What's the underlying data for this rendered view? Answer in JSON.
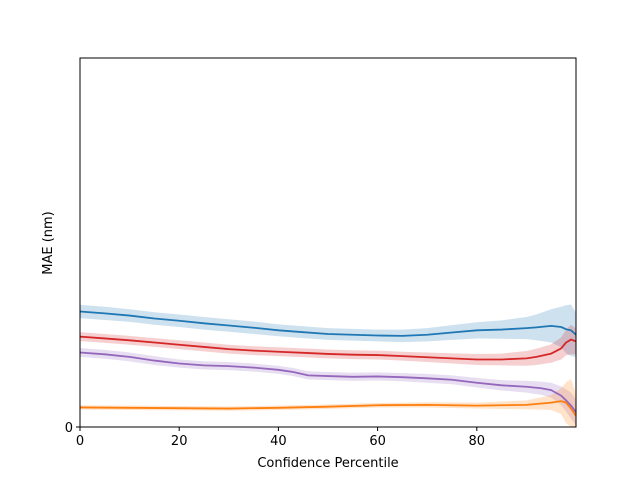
{
  "chart_data": {
    "type": "line",
    "title": "",
    "xlabel": "Confidence Percentile",
    "ylabel": "MAE (nm)",
    "xlim": [
      0,
      100
    ],
    "ylim": [
      0,
      1.0
    ],
    "xticks": [
      0,
      20,
      40,
      60,
      80
    ],
    "yticks": [
      0
    ],
    "grid": false,
    "legend": "none",
    "series": [
      {
        "color": "#1f77b4",
        "x": [
          0,
          5,
          10,
          15,
          20,
          25,
          30,
          35,
          40,
          45,
          50,
          55,
          60,
          65,
          70,
          75,
          80,
          85,
          90,
          92,
          95,
          97,
          98,
          99,
          100
        ],
        "y": [
          0.313,
          0.308,
          0.302,
          0.294,
          0.288,
          0.281,
          0.275,
          0.269,
          0.262,
          0.257,
          0.252,
          0.25,
          0.248,
          0.247,
          0.25,
          0.256,
          0.262,
          0.264,
          0.268,
          0.27,
          0.274,
          0.271,
          0.265,
          0.262,
          0.25
        ],
        "band": [
          0.018,
          0.018,
          0.017,
          0.017,
          0.017,
          0.017,
          0.017,
          0.017,
          0.016,
          0.016,
          0.016,
          0.016,
          0.016,
          0.017,
          0.018,
          0.02,
          0.022,
          0.025,
          0.03,
          0.035,
          0.045,
          0.055,
          0.065,
          0.07,
          0.06
        ]
      },
      {
        "color": "#d62728",
        "x": [
          0,
          5,
          10,
          15,
          20,
          25,
          30,
          35,
          40,
          45,
          50,
          55,
          60,
          65,
          70,
          75,
          80,
          85,
          90,
          92,
          95,
          97,
          98,
          99,
          100
        ],
        "y": [
          0.245,
          0.24,
          0.235,
          0.229,
          0.223,
          0.217,
          0.211,
          0.207,
          0.204,
          0.201,
          0.198,
          0.196,
          0.195,
          0.192,
          0.189,
          0.186,
          0.183,
          0.183,
          0.186,
          0.19,
          0.199,
          0.213,
          0.229,
          0.237,
          0.232
        ],
        "band": [
          0.012,
          0.012,
          0.012,
          0.012,
          0.012,
          0.012,
          0.012,
          0.012,
          0.012,
          0.012,
          0.012,
          0.012,
          0.012,
          0.012,
          0.013,
          0.014,
          0.015,
          0.016,
          0.02,
          0.022,
          0.025,
          0.03,
          0.035,
          0.04,
          0.035
        ]
      },
      {
        "color": "#9467bd",
        "x": [
          0,
          5,
          10,
          15,
          20,
          25,
          30,
          35,
          40,
          43,
          46,
          50,
          55,
          60,
          65,
          70,
          75,
          80,
          85,
          90,
          93,
          95,
          97,
          98,
          99,
          100
        ],
        "y": [
          0.202,
          0.197,
          0.19,
          0.18,
          0.172,
          0.167,
          0.165,
          0.161,
          0.155,
          0.149,
          0.14,
          0.138,
          0.136,
          0.137,
          0.135,
          0.132,
          0.128,
          0.12,
          0.113,
          0.109,
          0.105,
          0.1,
          0.085,
          0.072,
          0.058,
          0.04
        ],
        "band": [
          0.012,
          0.012,
          0.012,
          0.012,
          0.011,
          0.011,
          0.011,
          0.011,
          0.011,
          0.011,
          0.011,
          0.011,
          0.011,
          0.011,
          0.011,
          0.012,
          0.012,
          0.013,
          0.014,
          0.016,
          0.018,
          0.02,
          0.025,
          0.03,
          0.035,
          0.035
        ]
      },
      {
        "color": "#ff7f0e",
        "x": [
          0,
          10,
          20,
          30,
          40,
          50,
          60,
          70,
          80,
          90,
          95,
          97,
          98,
          99,
          100
        ],
        "y": [
          0.053,
          0.052,
          0.051,
          0.05,
          0.052,
          0.055,
          0.059,
          0.06,
          0.058,
          0.06,
          0.066,
          0.07,
          0.066,
          0.05,
          0.03
        ],
        "band": [
          0.006,
          0.006,
          0.006,
          0.006,
          0.006,
          0.006,
          0.006,
          0.007,
          0.008,
          0.012,
          0.02,
          0.035,
          0.055,
          0.08,
          0.06
        ]
      }
    ]
  }
}
